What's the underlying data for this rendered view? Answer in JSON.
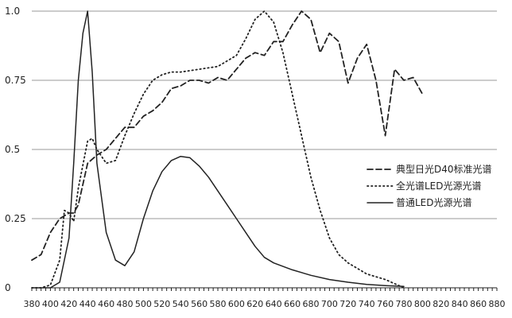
{
  "chart_data": {
    "type": "line",
    "xlim": [
      380,
      880
    ],
    "ylim": [
      0,
      1.0
    ],
    "x_ticks": [
      380,
      400,
      420,
      440,
      460,
      480,
      500,
      520,
      540,
      560,
      580,
      600,
      620,
      640,
      660,
      680,
      700,
      720,
      740,
      760,
      780,
      800,
      820,
      840,
      860,
      880
    ],
    "x_tick_labels": [
      "380",
      "400",
      "420",
      "440",
      "460",
      "480",
      "500",
      "520",
      "540",
      "560",
      "580",
      "600",
      "620",
      "640",
      "660",
      "680",
      "700",
      "720",
      "740",
      "760",
      "780",
      "800",
      "820",
      "840",
      "860",
      "880"
    ],
    "y_ticks": [
      0,
      0.25,
      0.5,
      0.75,
      1.0
    ],
    "y_tick_labels": [
      "0",
      "0.25",
      "0.5",
      "0.75",
      "1.0"
    ],
    "grid": "horizontal",
    "legend_position": "right",
    "series": [
      {
        "name": "典型日光D40标准光谱",
        "style": "dashed",
        "color": "#222222",
        "points": [
          [
            380,
            0.1
          ],
          [
            390,
            0.12
          ],
          [
            400,
            0.2
          ],
          [
            410,
            0.25
          ],
          [
            420,
            0.27
          ],
          [
            425,
            0.27
          ],
          [
            430,
            0.3
          ],
          [
            440,
            0.45
          ],
          [
            450,
            0.48
          ],
          [
            460,
            0.5
          ],
          [
            470,
            0.54
          ],
          [
            480,
            0.58
          ],
          [
            490,
            0.58
          ],
          [
            500,
            0.62
          ],
          [
            510,
            0.64
          ],
          [
            520,
            0.67
          ],
          [
            530,
            0.72
          ],
          [
            540,
            0.73
          ],
          [
            550,
            0.75
          ],
          [
            560,
            0.75
          ],
          [
            570,
            0.74
          ],
          [
            580,
            0.76
          ],
          [
            590,
            0.75
          ],
          [
            600,
            0.79
          ],
          [
            610,
            0.83
          ],
          [
            620,
            0.85
          ],
          [
            630,
            0.84
          ],
          [
            640,
            0.89
          ],
          [
            650,
            0.89
          ],
          [
            660,
            0.95
          ],
          [
            670,
            1.0
          ],
          [
            680,
            0.97
          ],
          [
            690,
            0.85
          ],
          [
            700,
            0.92
          ],
          [
            710,
            0.89
          ],
          [
            720,
            0.74
          ],
          [
            730,
            0.83
          ],
          [
            740,
            0.88
          ],
          [
            750,
            0.75
          ],
          [
            760,
            0.55
          ],
          [
            770,
            0.79
          ],
          [
            780,
            0.75
          ],
          [
            790,
            0.76
          ],
          [
            800,
            0.7
          ]
        ]
      },
      {
        "name": "全光谱LED光源光谱",
        "style": "dotted",
        "color": "#222222",
        "points": [
          [
            380,
            0.0
          ],
          [
            390,
            0.0
          ],
          [
            400,
            0.01
          ],
          [
            410,
            0.1
          ],
          [
            415,
            0.28
          ],
          [
            420,
            0.27
          ],
          [
            425,
            0.24
          ],
          [
            430,
            0.36
          ],
          [
            440,
            0.53
          ],
          [
            445,
            0.54
          ],
          [
            450,
            0.5
          ],
          [
            460,
            0.45
          ],
          [
            470,
            0.46
          ],
          [
            480,
            0.55
          ],
          [
            490,
            0.63
          ],
          [
            500,
            0.7
          ],
          [
            510,
            0.75
          ],
          [
            520,
            0.77
          ],
          [
            530,
            0.78
          ],
          [
            540,
            0.78
          ],
          [
            560,
            0.79
          ],
          [
            580,
            0.8
          ],
          [
            600,
            0.84
          ],
          [
            610,
            0.9
          ],
          [
            620,
            0.97
          ],
          [
            630,
            1.0
          ],
          [
            640,
            0.96
          ],
          [
            650,
            0.85
          ],
          [
            660,
            0.7
          ],
          [
            670,
            0.55
          ],
          [
            680,
            0.4
          ],
          [
            690,
            0.28
          ],
          [
            700,
            0.18
          ],
          [
            710,
            0.12
          ],
          [
            720,
            0.09
          ],
          [
            730,
            0.07
          ],
          [
            740,
            0.05
          ],
          [
            750,
            0.04
          ],
          [
            760,
            0.03
          ],
          [
            770,
            0.015
          ],
          [
            780,
            0.0
          ]
        ]
      },
      {
        "name": "普通LED光源光谱",
        "style": "solid",
        "color": "#222222",
        "points": [
          [
            380,
            0.0
          ],
          [
            390,
            0.0
          ],
          [
            400,
            0.0
          ],
          [
            410,
            0.02
          ],
          [
            420,
            0.18
          ],
          [
            425,
            0.45
          ],
          [
            430,
            0.75
          ],
          [
            435,
            0.92
          ],
          [
            440,
            1.0
          ],
          [
            445,
            0.78
          ],
          [
            450,
            0.45
          ],
          [
            460,
            0.2
          ],
          [
            470,
            0.1
          ],
          [
            480,
            0.08
          ],
          [
            490,
            0.13
          ],
          [
            500,
            0.25
          ],
          [
            510,
            0.35
          ],
          [
            520,
            0.42
          ],
          [
            530,
            0.46
          ],
          [
            540,
            0.475
          ],
          [
            550,
            0.47
          ],
          [
            560,
            0.44
          ],
          [
            570,
            0.4
          ],
          [
            580,
            0.35
          ],
          [
            590,
            0.3
          ],
          [
            600,
            0.25
          ],
          [
            610,
            0.2
          ],
          [
            620,
            0.15
          ],
          [
            630,
            0.11
          ],
          [
            640,
            0.09
          ],
          [
            660,
            0.065
          ],
          [
            680,
            0.045
          ],
          [
            700,
            0.03
          ],
          [
            720,
            0.02
          ],
          [
            740,
            0.012
          ],
          [
            760,
            0.008
          ],
          [
            780,
            0.005
          ]
        ]
      }
    ]
  }
}
